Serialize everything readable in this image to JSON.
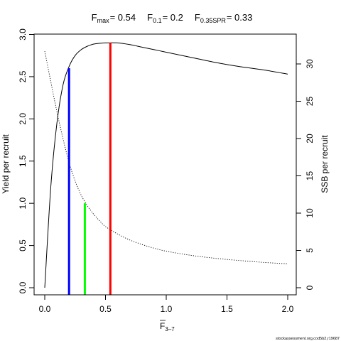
{
  "header": {
    "fmax_label": "F",
    "fmax_sub": "max",
    "fmax_value": "= 0.54",
    "f01_label": "F",
    "f01_sub": "0.1",
    "f01_value": "= 0.2",
    "fspr_label": "F",
    "fspr_sub": "0.35SPR",
    "fspr_value": "= 0.33"
  },
  "source_text": "stockassessment.org,cod5b2,r19687",
  "chart_data": {
    "type": "line",
    "title": "F_max = 0.54   F_0.1 = 0.2   F_0.35SPR = 0.33",
    "xlabel_main": "F",
    "xlabel_sub": "3–7",
    "ylabel_left": "Yield per recruit",
    "ylabel_right": "SSB per recruit",
    "xlim": [
      0,
      2
    ],
    "ylim_left": [
      0,
      3
    ],
    "ylim_right": [
      0,
      33
    ],
    "x_ticks": [
      0,
      0.5,
      1,
      1.5,
      2
    ],
    "x_tick_labels": [
      "0.0",
      "0.5",
      "1.0",
      "1.5",
      "2.0"
    ],
    "y_left_ticks": [
      0,
      0.5,
      1,
      1.5,
      2,
      2.5,
      3
    ],
    "y_left_tick_labels": [
      "0.0",
      "0.5",
      "1.0",
      "1.5",
      "2.0",
      "2.5",
      "3.0"
    ],
    "y_right_ticks": [
      0,
      5,
      10,
      15,
      20,
      25,
      30
    ],
    "y_right_tick_labels": [
      "0",
      "5",
      "10",
      "15",
      "20",
      "25",
      "30"
    ],
    "series": [
      {
        "axis": "left",
        "style": "solid",
        "color": "#000000",
        "x": [
          0,
          0.05,
          0.1,
          0.15,
          0.2,
          0.25,
          0.3,
          0.35,
          0.4,
          0.45,
          0.5,
          0.54,
          0.6,
          0.7,
          0.8,
          0.9,
          1.0,
          1.2,
          1.4,
          1.6,
          1.8,
          2.0
        ],
        "y": [
          0,
          1.2,
          1.95,
          2.4,
          2.62,
          2.75,
          2.82,
          2.86,
          2.885,
          2.895,
          2.9,
          2.9,
          2.9,
          2.88,
          2.85,
          2.82,
          2.79,
          2.73,
          2.67,
          2.62,
          2.58,
          2.53
        ]
      },
      {
        "axis": "right",
        "style": "dotted",
        "color": "#000000",
        "x": [
          0,
          0.05,
          0.1,
          0.15,
          0.2,
          0.25,
          0.3,
          0.35,
          0.4,
          0.45,
          0.5,
          0.6,
          0.7,
          0.8,
          0.9,
          1.0,
          1.2,
          1.4,
          1.6,
          1.8,
          2.0
        ],
        "y": [
          31.7,
          27.6,
          23.6,
          20.0,
          16.8,
          14.3,
          12.4,
          11.0,
          9.9,
          9.0,
          8.2,
          7.2,
          6.4,
          5.8,
          5.3,
          4.9,
          4.35,
          3.95,
          3.65,
          3.4,
          3.2
        ]
      }
    ],
    "reference_lines": [
      {
        "name": "F_0.1",
        "x": 0.2,
        "y": 2.6,
        "color": "#0000ff"
      },
      {
        "name": "F_0.35SPR",
        "x": 0.33,
        "y": 1.0,
        "color": "#00ff00"
      },
      {
        "name": "F_max",
        "x": 0.54,
        "y": 2.9,
        "color": "#ff0000"
      }
    ]
  }
}
